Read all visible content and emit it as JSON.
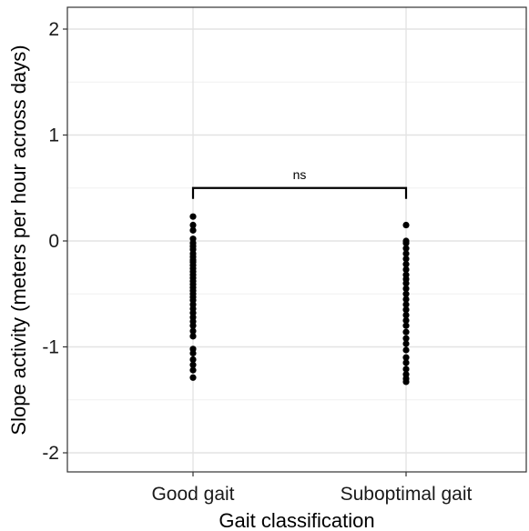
{
  "chart_data": {
    "type": "scatter",
    "title": "",
    "xlabel": "Gait classification",
    "ylabel": "Slope activity (meters per hour across days)",
    "categories": [
      "Good gait",
      "Suboptimal gait"
    ],
    "ylim": [
      -2.2,
      2.2
    ],
    "yticks": [
      -2,
      -1,
      0,
      1,
      2
    ],
    "ytick_labels": [
      "-2",
      "-1",
      "0",
      "1",
      "2"
    ],
    "grid": true,
    "legend": "none",
    "point_color": "#000000",
    "series": [
      {
        "values": [
          0.23,
          0.15,
          0.1,
          0.02,
          -0.02,
          -0.05,
          -0.08,
          -0.12,
          -0.15,
          -0.18,
          -0.2,
          -0.23,
          -0.26,
          -0.29,
          -0.32,
          -0.35,
          -0.38,
          -0.41,
          -0.44,
          -0.47,
          -0.5,
          -0.53,
          -0.56,
          -0.6,
          -0.64,
          -0.68,
          -0.72,
          -0.76,
          -0.8,
          -0.85,
          -0.9,
          -1.02,
          -1.06,
          -1.12,
          -1.17,
          -1.22,
          -1.29
        ]
      },
      {
        "values": [
          0.15,
          0.0,
          -0.02,
          -0.07,
          -0.12,
          -0.17,
          -0.22,
          -0.27,
          -0.32,
          -0.36,
          -0.4,
          -0.45,
          -0.5,
          -0.55,
          -0.6,
          -0.65,
          -0.7,
          -0.75,
          -0.8,
          -0.86,
          -0.92,
          -0.97,
          -1.03,
          -1.1,
          -1.15,
          -1.21,
          -1.26,
          -1.3,
          -1.33
        ]
      }
    ],
    "annotations": [
      {
        "text": "ns",
        "bracket": [
          "Good gait",
          "Suboptimal gait"
        ],
        "y": 0.5
      }
    ]
  }
}
